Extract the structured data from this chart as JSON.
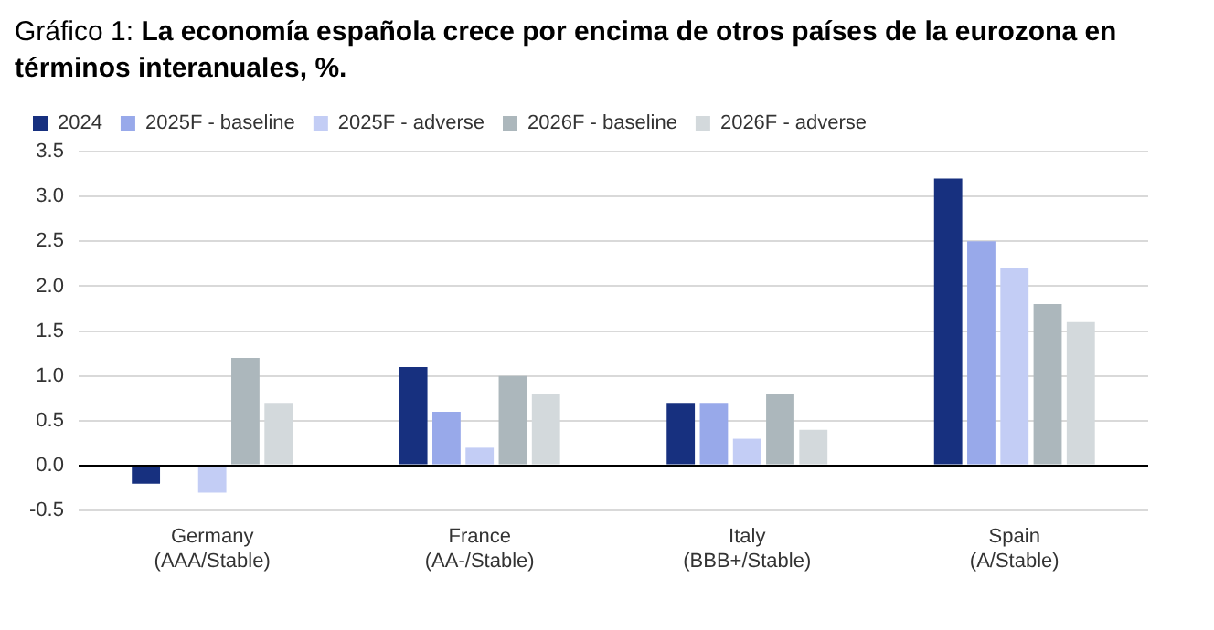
{
  "chart_data": {
    "type": "bar",
    "title": "Gráfico 1: La economía española crece por encima de otros países de la eurozona en términos interanuales,  %.",
    "categories": [
      "Germany\n(AAA/Stable)",
      "France\n(AA-/Stable)",
      "Italy\n(BBB+/Stable)",
      "Spain\n(A/Stable)"
    ],
    "series": [
      {
        "name": "2024",
        "color": "#17307f",
        "values": [
          -0.2,
          1.1,
          0.7,
          3.2
        ]
      },
      {
        "name": "2025F - baseline",
        "color": "#98a9ea",
        "values": [
          null,
          0.6,
          0.7,
          2.5
        ]
      },
      {
        "name": "2025F - adverse",
        "color": "#c3cdf5",
        "values": [
          -0.3,
          0.2,
          0.3,
          2.2
        ]
      },
      {
        "name": "2026F - baseline",
        "color": "#acb7bc",
        "values": [
          1.2,
          1.0,
          0.8,
          1.8
        ]
      },
      {
        "name": "2026F - adverse",
        "color": "#d3d9dc",
        "values": [
          0.7,
          0.8,
          0.4,
          1.6
        ]
      }
    ],
    "ylim": [
      -0.5,
      3.5
    ],
    "yticks": [
      -0.5,
      {
        "value": 0,
        "label": "0.0"
      },
      0.5,
      {
        "value": 1,
        "label": "1.0"
      },
      1.5,
      {
        "value": 2,
        "label": "2.0"
      },
      2.5,
      {
        "value": 3,
        "label": "3.0"
      },
      3.5
    ],
    "grid": "y",
    "legend": "top left"
  }
}
